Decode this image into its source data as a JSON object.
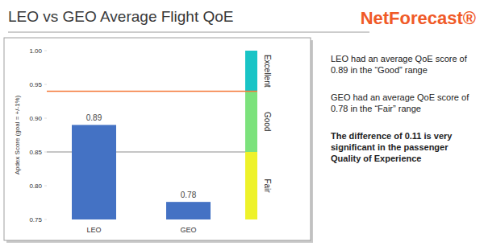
{
  "chart_data": {
    "type": "bar",
    "title": "LEO vs GEO Average Flight QoE",
    "brand": "NetForecast®",
    "y_label": "Apdex Score (goal = +/-1%)",
    "categories": [
      "LEO",
      "GEO"
    ],
    "values": [
      0.89,
      0.776
    ],
    "value_labels": [
      "0.89",
      "0.78"
    ],
    "color": "#4472c4",
    "data_labels": true,
    "ylim": [
      0.75,
      1
    ],
    "yticks": [
      0.75,
      {
        "value": 0.8,
        "label": "0.80"
      },
      0.85,
      {
        "value": 0.9,
        "label": "0.90"
      },
      0.95,
      {
        "value": 1,
        "label": "1.00"
      }
    ],
    "grid": false,
    "reference_lines": [
      {
        "value": 0.94,
        "color": "#f4793b"
      },
      {
        "value": 0.85,
        "color": "#8c8c8c"
      }
    ],
    "bands": [
      {
        "label": "Excellent",
        "from": 0.94,
        "to": 1,
        "color": "#19c4c6"
      },
      {
        "label": "Good",
        "from": 0.85,
        "to": 0.94,
        "color": "#7ce27c"
      },
      {
        "label": "Fair",
        "from": 0.75,
        "to": 0.85,
        "color": "#eef22a"
      }
    ],
    "notes": [
      "LEO had an average QoE score of 0.89 in the “Good” range",
      "GEO had an average QoE score of 0.78 in the “Fair” range",
      "The difference of 0.11 is very significant in the passenger Quality of Experience"
    ]
  }
}
